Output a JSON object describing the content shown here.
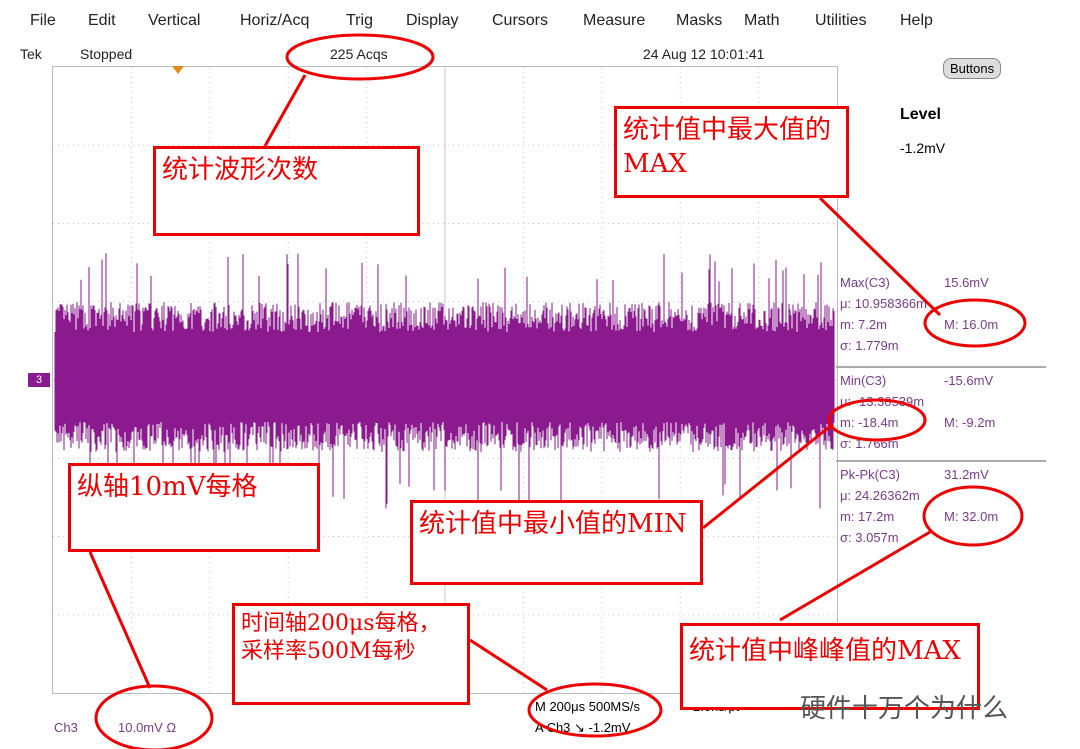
{
  "menu": [
    "File",
    "Edit",
    "Vertical",
    "Horiz/Acq",
    "Trig",
    "Display",
    "Cursors",
    "Measure",
    "Masks",
    "Math",
    "Utilities",
    "Help"
  ],
  "status": {
    "brand": "Tek",
    "state": "Stopped",
    "acqs": "225 Acqs",
    "datetime": "24 Aug 12 10:01:41"
  },
  "buttons_label": "Buttons",
  "trigger": {
    "label": "Level",
    "value": "-1.2mV"
  },
  "channel_marker": "3",
  "measurements": [
    {
      "title": "Max(C3)",
      "value": "15.6mV",
      "mu": "μ: 10.958366m",
      "m": "m: 7.2m",
      "M": "M: 16.0m",
      "sigma": "σ: 1.779m"
    },
    {
      "title": "Min(C3)",
      "value": "-15.6mV",
      "mu": "μ: -13.30539m",
      "m": "m: -18.4m",
      "M": "M: -9.2m",
      "sigma": "σ: 1.766m"
    },
    {
      "title": "Pk-Pk(C3)",
      "value": "31.2mV",
      "mu": "μ: 24.26362m",
      "m": "m: 17.2m",
      "M": "M: 32.0m",
      "sigma": "σ: 3.057m"
    }
  ],
  "bottom": {
    "ch": "Ch3",
    "scale": "10.0mV Ω",
    "timebase": "M 200μs 500MS/s",
    "res": "2.0ns/pt",
    "trig": "A Ch3 ↘ -1.2mV"
  },
  "annotations": {
    "acq_count": "统计波形次数",
    "max_max": "统计值中最大值的MAX",
    "vertical": "纵轴10mV每格",
    "min_min": "统计值中最小值的MIN",
    "timebase": "时间轴200μs每格，采样率500M每秒",
    "pkpk_max": "统计值中峰峰值的MAX"
  },
  "watermark": "硬件十万个为什么",
  "colors": {
    "trace": "#8a1a8e",
    "annotation": "#e00000",
    "grid": "#c8c8c8"
  }
}
